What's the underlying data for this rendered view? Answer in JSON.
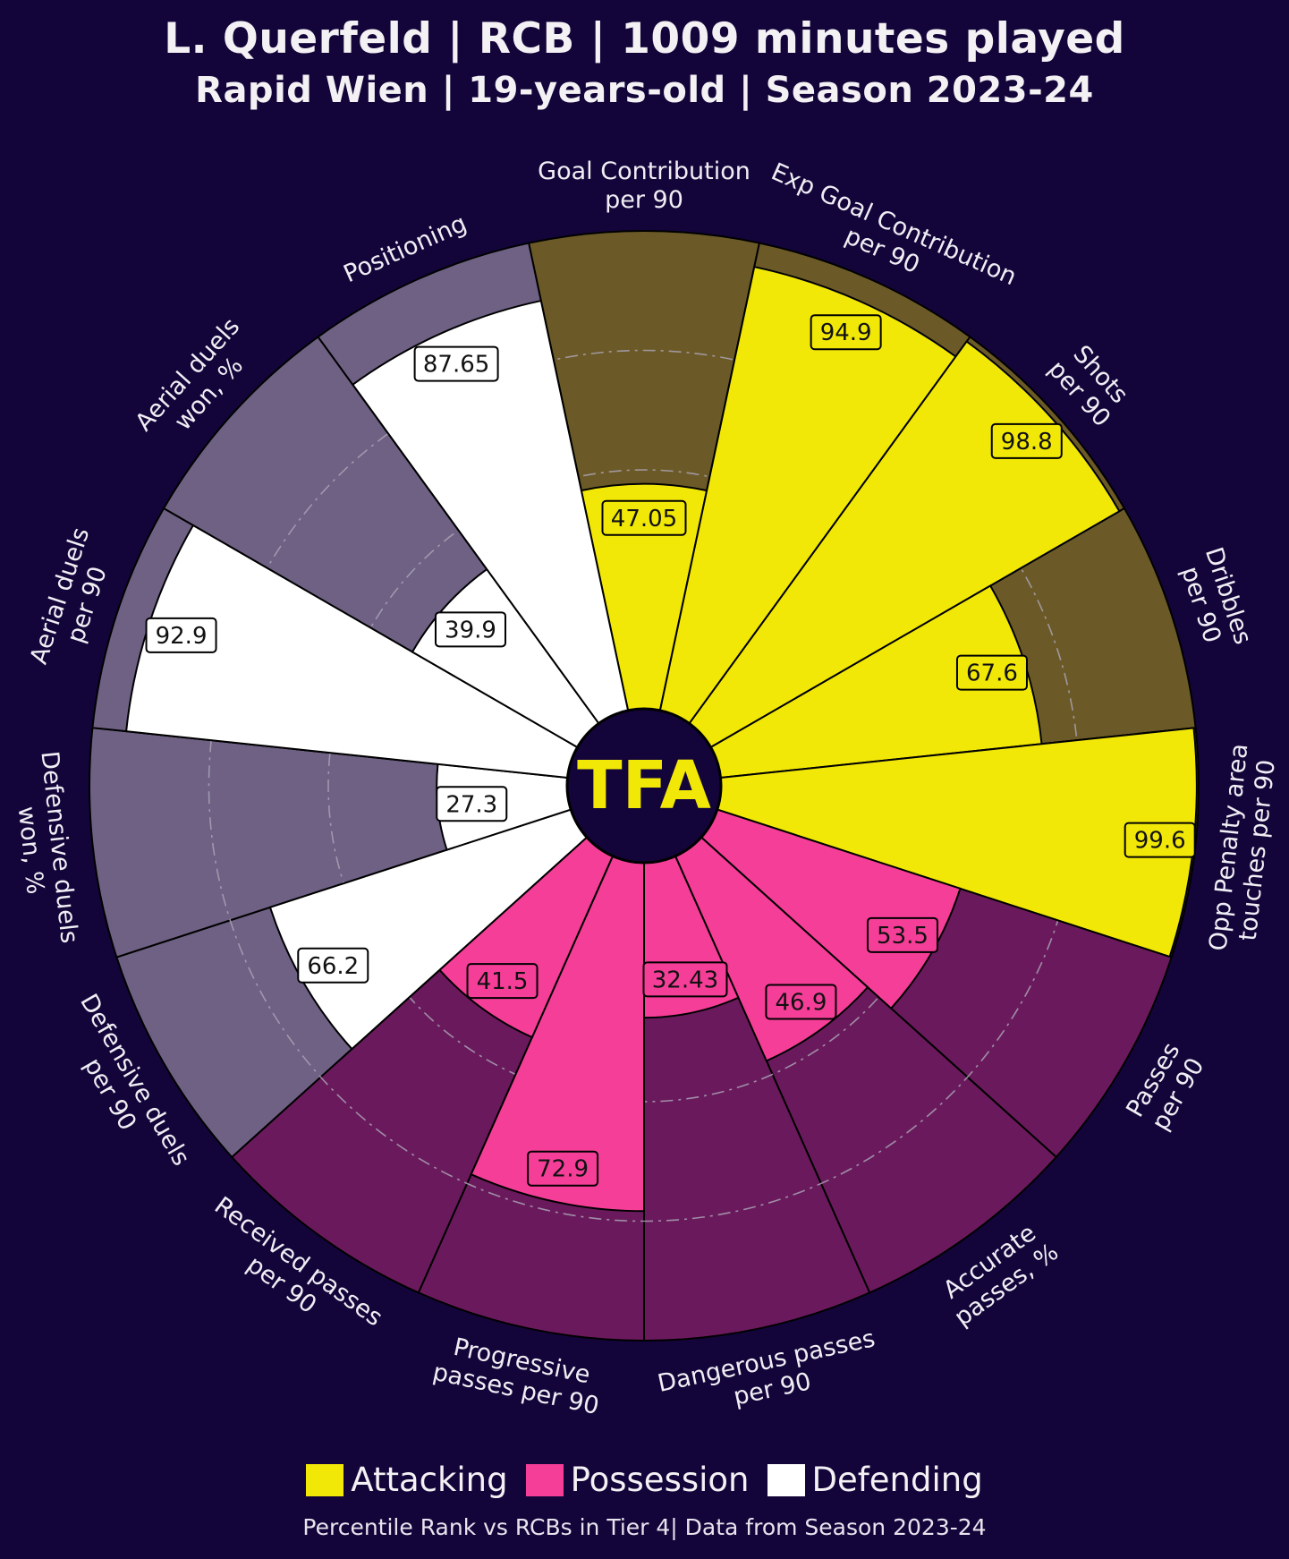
{
  "header": {
    "title": "L. Querfeld | RCB | 1009 minutes played",
    "subtitle": "Rapid Wien | 19-years-old | Season 2023-24"
  },
  "logo": {
    "text": "TFA"
  },
  "legend": {
    "items": [
      {
        "label": "Attacking",
        "color": "#f2e807"
      },
      {
        "label": "Possession",
        "color": "#f53e98"
      },
      {
        "label": "Defending",
        "color": "#ffffff"
      }
    ]
  },
  "footnote": "Percentile Rank vs RCBs in Tier 4| Data from Season 2023-24",
  "colors": {
    "background": "#13053a",
    "attacking": "#f2e807",
    "attacking_bg": "#6b5a27",
    "possession": "#f53e98",
    "possession_bg": "#6a1a5c",
    "defending": "#ffffff",
    "defending_bg": "#6e6184",
    "edge": "#000000",
    "grid": "#a9a2b4"
  },
  "chart_data": {
    "type": "polar-bar",
    "value_range": [
      0,
      100
    ],
    "gridlines": [
      25,
      50,
      75
    ],
    "metrics": [
      {
        "label": [
          "Goal Contribution",
          "per 90"
        ],
        "value": 47.05,
        "group": "Attacking"
      },
      {
        "label": [
          "Exp Goal Contribution",
          "per 90"
        ],
        "value": 94.9,
        "group": "Attacking"
      },
      {
        "label": [
          "Shots",
          "per 90"
        ],
        "value": 98.8,
        "group": "Attacking"
      },
      {
        "label": [
          "Dribbles",
          "per 90"
        ],
        "value": 67.6,
        "group": "Attacking"
      },
      {
        "label": [
          "Opp Penalty area",
          "touches per 90"
        ],
        "value": 99.6,
        "group": "Attacking"
      },
      {
        "label": [
          "Passes",
          "per 90"
        ],
        "value": 53.5,
        "group": "Possession"
      },
      {
        "label": [
          "Accurate",
          "passes, %"
        ],
        "value": 46.9,
        "group": "Possession"
      },
      {
        "label": [
          "Dangerous passes",
          "per 90"
        ],
        "value": 32.43,
        "group": "Possession"
      },
      {
        "label": [
          "Progressive",
          "passes per 90"
        ],
        "value": 72.9,
        "group": "Possession"
      },
      {
        "label": [
          "Received passes",
          "per 90"
        ],
        "value": 41.5,
        "group": "Possession"
      },
      {
        "label": [
          "Defensive duels",
          "per 90"
        ],
        "value": 66.2,
        "group": "Defending"
      },
      {
        "label": [
          "Defensive duels",
          "won, %"
        ],
        "value": 27.3,
        "group": "Defending"
      },
      {
        "label": [
          "Aerial duels",
          "per 90"
        ],
        "value": 92.9,
        "group": "Defending"
      },
      {
        "label": [
          "Aerial duels",
          "won, %"
        ],
        "value": 39.9,
        "group": "Defending"
      },
      {
        "label": [
          "Positioning"
        ],
        "value": 87.65,
        "group": "Defending"
      }
    ]
  }
}
